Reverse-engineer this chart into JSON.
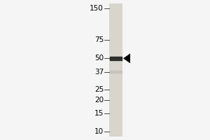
{
  "background_color": "#f5f5f5",
  "lane_bg_color": "#d8d5cc",
  "band_color": "#222222",
  "faint_band_color": "#bbbbbb",
  "marker_labels": [
    150,
    75,
    50,
    37,
    25,
    20,
    15,
    10
  ],
  "arrow_at_kda": 50,
  "font_size": 7.5,
  "label_fontsize": 7.5,
  "fig_width": 3.0,
  "fig_height": 2.0,
  "dpi": 100
}
